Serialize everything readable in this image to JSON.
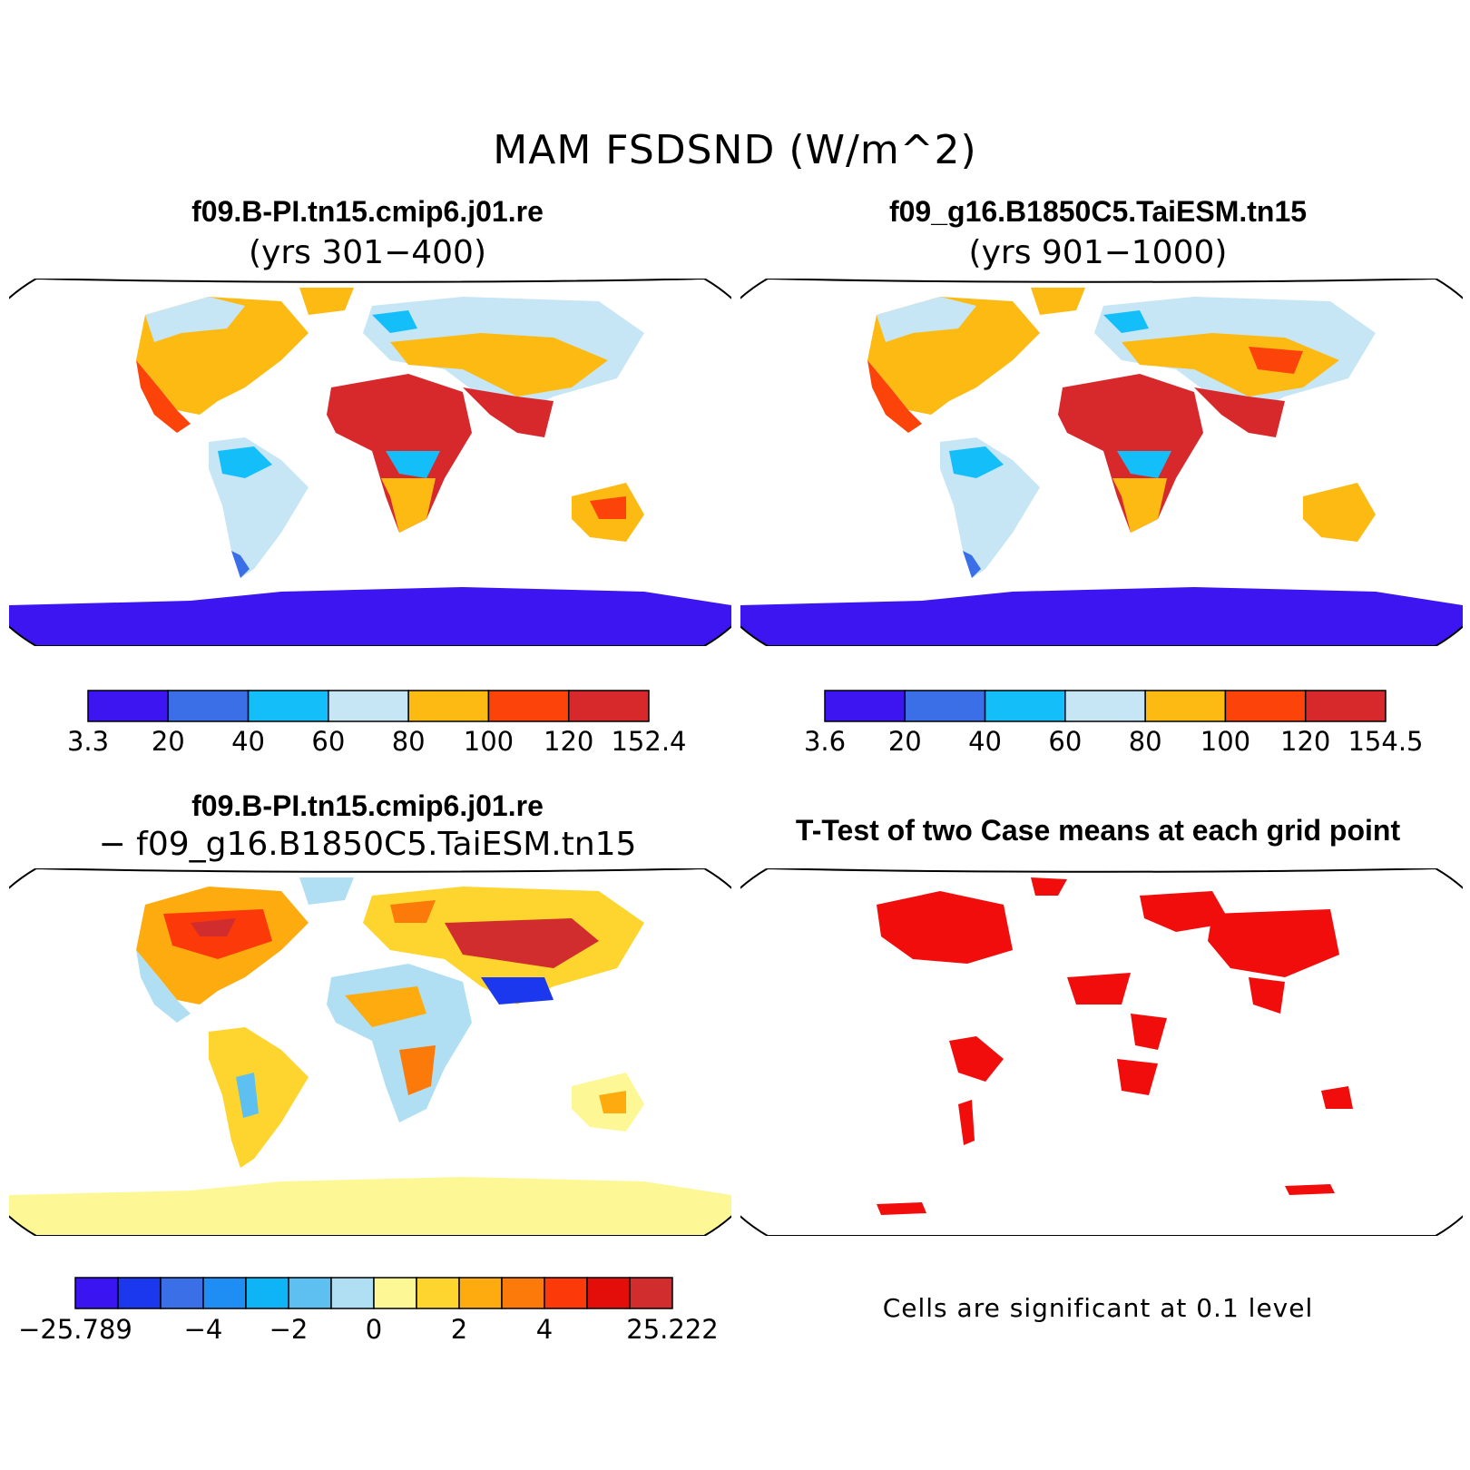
{
  "title": "MAM FSDSND (W/m^2)",
  "panels": {
    "top_left": {
      "title": "f09.B-PI.tn15.cmip6.j01.re",
      "subtitle": "(yrs 301−400)",
      "colorbar": {
        "colors": [
          "#3c15f0",
          "#3a6fe8",
          "#14bef9",
          "#c6e6f6",
          "#fdba12",
          "#fc4309",
          "#d7292c"
        ],
        "labels": [
          "3.3",
          "20",
          "40",
          "60",
          "80",
          "100",
          "120",
          "152.4"
        ]
      }
    },
    "top_right": {
      "title": "f09_g16.B1850C5.TaiESM.tn15",
      "subtitle": "(yrs 901−1000)",
      "colorbar": {
        "colors": [
          "#3c15f0",
          "#3a6fe8",
          "#14bef9",
          "#c6e6f6",
          "#fdba12",
          "#fc4309",
          "#d7292c"
        ],
        "labels": [
          "3.6",
          "20",
          "40",
          "60",
          "80",
          "100",
          "120",
          "154.5"
        ]
      }
    },
    "bottom_left": {
      "title": "f09.B-PI.tn15.cmip6.j01.re",
      "subtitle": "− f09_g16.B1850C5.TaiESM.tn15",
      "colorbar": {
        "colors": [
          "#3a14f1",
          "#1c38ef",
          "#3a6fe8",
          "#1e8ef5",
          "#0fb4f7",
          "#5ec0f0",
          "#b0dff4",
          "#fef796",
          "#fdd52e",
          "#fdab0f",
          "#fc7a0a",
          "#fc3a09",
          "#e30d0a",
          "#d12d2f"
        ],
        "labels": [
          "−25.789",
          "−4",
          "−2",
          "0",
          "2",
          "4",
          "25.222"
        ]
      }
    },
    "bottom_right": {
      "title": "T-Test of two Case means at each grid point",
      "note": "Cells are significant at 0.1 level",
      "significant_color": "#f20d0d"
    }
  }
}
